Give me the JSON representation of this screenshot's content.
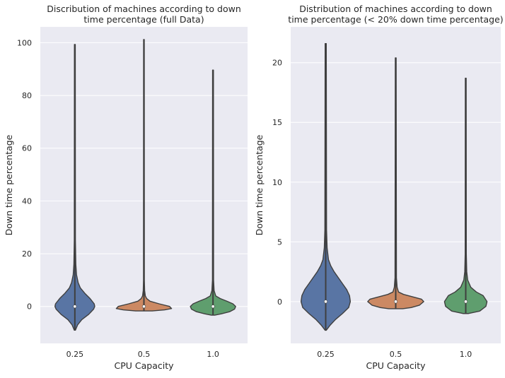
{
  "chart_data": [
    {
      "type": "violin",
      "title_lines": [
        "Discribution of machines according to down",
        "time percentage (full Data)"
      ],
      "xlabel": "CPU Capacity",
      "ylabel": "Down time percentage",
      "categories": [
        "0.25",
        "0.5",
        "1.0"
      ],
      "ylim": [
        -14,
        106
      ],
      "yticks": [
        0,
        20,
        40,
        60,
        80,
        100
      ],
      "grid": true,
      "legend": "none",
      "colors": [
        "#5975a4",
        "#cc8963",
        "#5f9e6e"
      ],
      "violins": [
        {
          "category": "0.25",
          "min": -9,
          "max": 99.3,
          "median": 0,
          "density": [
            [
              -9,
              0.02
            ],
            [
              -7,
              0.1
            ],
            [
              -5,
              0.25
            ],
            [
              -3,
              0.5
            ],
            [
              -1,
              0.68
            ],
            [
              0,
              0.72
            ],
            [
              1,
              0.7
            ],
            [
              3,
              0.55
            ],
            [
              5,
              0.36
            ],
            [
              7,
              0.2
            ],
            [
              9,
              0.12
            ],
            [
              12,
              0.06
            ],
            [
              16,
              0.035
            ],
            [
              25,
              0.02
            ],
            [
              99.3,
              0.015
            ]
          ]
        },
        {
          "category": "0.5",
          "min": -1.7,
          "max": 101.2,
          "median": 0,
          "density": [
            [
              -1.7,
              0.3
            ],
            [
              -1.3,
              0.75
            ],
            [
              -0.8,
              1.0
            ],
            [
              0,
              0.93
            ],
            [
              1,
              0.55
            ],
            [
              2,
              0.22
            ],
            [
              3,
              0.1
            ],
            [
              4,
              0.05
            ],
            [
              6,
              0.025
            ],
            [
              10,
              0.015
            ],
            [
              101.2,
              0.012
            ]
          ]
        },
        {
          "category": "1.0",
          "min": -3.3,
          "max": 89.6,
          "median": 0,
          "density": [
            [
              -3.3,
              0.06
            ],
            [
              -2.8,
              0.3
            ],
            [
              -2,
              0.6
            ],
            [
              -1,
              0.78
            ],
            [
              0,
              0.82
            ],
            [
              1,
              0.72
            ],
            [
              2,
              0.5
            ],
            [
              3,
              0.26
            ],
            [
              4,
              0.1
            ],
            [
              6,
              0.04
            ],
            [
              10,
              0.02
            ],
            [
              89.6,
              0.015
            ]
          ]
        }
      ]
    },
    {
      "type": "violin",
      "title_lines": [
        "Distribution of machines according to down",
        "time percentage (< 20% down time percentage)"
      ],
      "xlabel": "CPU Capacity",
      "ylabel": "Down time percentage",
      "categories": [
        "0.25",
        "0.5",
        "1.0"
      ],
      "ylim": [
        -3.5,
        23
      ],
      "yticks": [
        0,
        5,
        10,
        15,
        20
      ],
      "grid": true,
      "legend": "none",
      "colors": [
        "#5975a4",
        "#cc8963",
        "#5f9e6e"
      ],
      "violins": [
        {
          "category": "0.25",
          "min": -2.4,
          "max": 21.6,
          "median": 0,
          "density": [
            [
              -2.4,
              0.02
            ],
            [
              -2,
              0.15
            ],
            [
              -1.5,
              0.35
            ],
            [
              -1,
              0.6
            ],
            [
              -0.5,
              0.82
            ],
            [
              0,
              0.88
            ],
            [
              0.5,
              0.85
            ],
            [
              1,
              0.75
            ],
            [
              1.5,
              0.6
            ],
            [
              2,
              0.45
            ],
            [
              2.5,
              0.3
            ],
            [
              3,
              0.18
            ],
            [
              3.5,
              0.1
            ],
            [
              4.5,
              0.05
            ],
            [
              6,
              0.03
            ],
            [
              21.6,
              0.02
            ]
          ]
        },
        {
          "category": "0.5",
          "min": -0.6,
          "max": 20.4,
          "median": 0,
          "density": [
            [
              -0.6,
              0.25
            ],
            [
              -0.5,
              0.55
            ],
            [
              -0.3,
              0.85
            ],
            [
              0,
              1.0
            ],
            [
              0.2,
              0.92
            ],
            [
              0.4,
              0.6
            ],
            [
              0.6,
              0.28
            ],
            [
              0.8,
              0.1
            ],
            [
              1.2,
              0.05
            ],
            [
              2,
              0.025
            ],
            [
              20.4,
              0.015
            ]
          ]
        },
        {
          "category": "1.0",
          "min": -1.0,
          "max": 18.7,
          "median": 0,
          "density": [
            [
              -1.0,
              0.1
            ],
            [
              -0.8,
              0.5
            ],
            [
              -0.4,
              0.72
            ],
            [
              0,
              0.76
            ],
            [
              0.5,
              0.62
            ],
            [
              0.8,
              0.38
            ],
            [
              1.2,
              0.18
            ],
            [
              1.8,
              0.07
            ],
            [
              2.5,
              0.035
            ],
            [
              4,
              0.02
            ],
            [
              18.7,
              0.015
            ]
          ]
        }
      ]
    }
  ]
}
